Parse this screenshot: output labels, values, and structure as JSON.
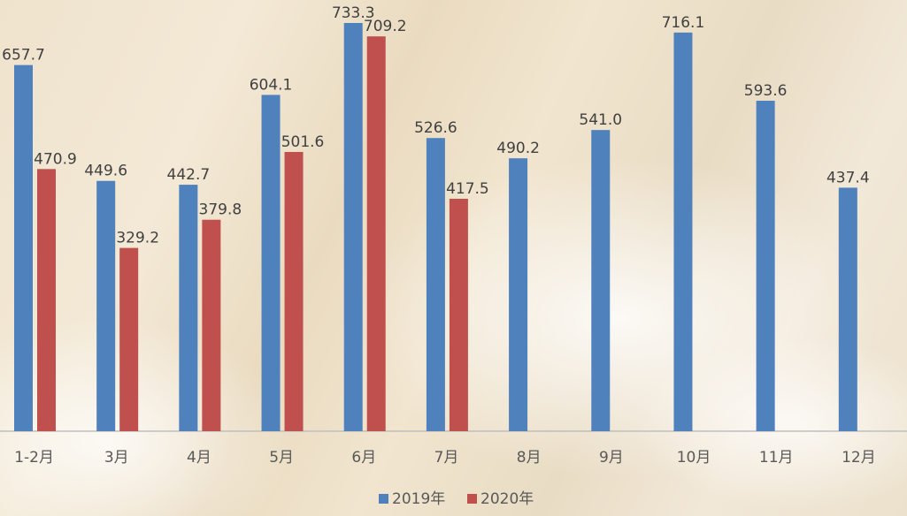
{
  "chart_data": {
    "type": "bar",
    "categories": [
      "1-2月",
      "3月",
      "4月",
      "5月",
      "6月",
      "7月",
      "8月",
      "9月",
      "10月",
      "11月",
      "12月"
    ],
    "series": [
      {
        "name": "2019年",
        "color": "#4f81bd",
        "values": [
          657.7,
          449.6,
          442.7,
          604.1,
          733.3,
          526.6,
          490.2,
          541.0,
          716.1,
          593.6,
          437.4
        ]
      },
      {
        "name": "2020年",
        "color": "#c0504d",
        "values": [
          470.9,
          329.2,
          379.8,
          501.6,
          709.2,
          417.5,
          null,
          null,
          null,
          null,
          null
        ]
      }
    ],
    "ylim": [
      0,
      735
    ],
    "grid": false,
    "legend": "bottom-center",
    "data_labels": true
  }
}
